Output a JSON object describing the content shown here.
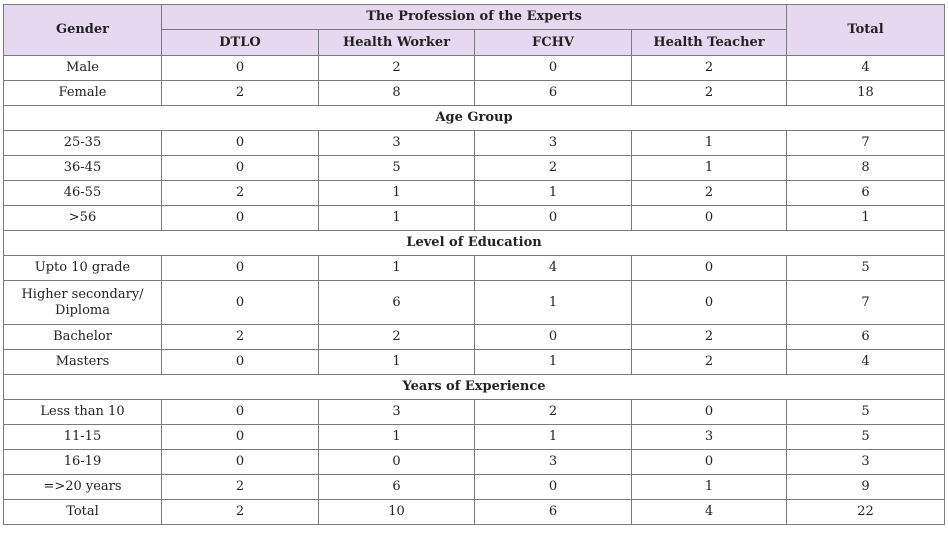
{
  "header": {
    "gender": "Gender",
    "group": "The Profession of the Experts",
    "total": "Total",
    "columns": [
      "DTLO",
      "Health Worker",
      "FCHV",
      "Health Teacher"
    ]
  },
  "rows": [
    {
      "type": "data",
      "label": "Male",
      "values": [
        "0",
        "2",
        "0",
        "2",
        "4"
      ]
    },
    {
      "type": "data",
      "label": "Female",
      "values": [
        "2",
        "8",
        "6",
        "2",
        "18"
      ]
    },
    {
      "type": "section",
      "label": "Age Group"
    },
    {
      "type": "data",
      "label": "25-35",
      "values": [
        "0",
        "3",
        "3",
        "1",
        "7"
      ]
    },
    {
      "type": "data",
      "label": "36-45",
      "values": [
        "0",
        "5",
        "2",
        "1",
        "8"
      ]
    },
    {
      "type": "data",
      "label": "46-55",
      "values": [
        "2",
        "1",
        "1",
        "2",
        "6"
      ]
    },
    {
      "type": "data",
      "label": ">56",
      "values": [
        "0",
        "1",
        "0",
        "0",
        "1"
      ]
    },
    {
      "type": "section",
      "label": "Level of Education"
    },
    {
      "type": "data",
      "label": "Upto 10 grade",
      "values": [
        "0",
        "1",
        "4",
        "0",
        "5"
      ]
    },
    {
      "type": "data",
      "label": "Higher secondary/ Diploma",
      "values": [
        "0",
        "6",
        "1",
        "0",
        "7"
      ],
      "tall": true
    },
    {
      "type": "data",
      "label": "Bachelor",
      "values": [
        "2",
        "2",
        "0",
        "2",
        "6"
      ]
    },
    {
      "type": "data",
      "label": "Masters",
      "values": [
        "0",
        "1",
        "1",
        "2",
        "4"
      ]
    },
    {
      "type": "section",
      "label": "Years of Experience"
    },
    {
      "type": "data",
      "label": "Less than 10",
      "values": [
        "0",
        "3",
        "2",
        "0",
        "5"
      ]
    },
    {
      "type": "data",
      "label": "11-15",
      "values": [
        "0",
        "1",
        "1",
        "3",
        "5"
      ]
    },
    {
      "type": "data",
      "label": "16-19",
      "values": [
        "0",
        "0",
        "3",
        "0",
        "3"
      ]
    },
    {
      "type": "data",
      "label": "=>20 years",
      "values": [
        "2",
        "6",
        "0",
        "1",
        "9"
      ]
    },
    {
      "type": "data",
      "label": "Total",
      "values": [
        "2",
        "10",
        "6",
        "4",
        "22"
      ]
    }
  ]
}
